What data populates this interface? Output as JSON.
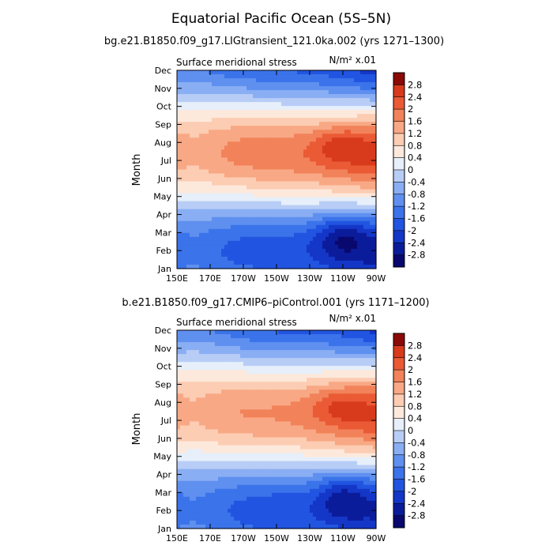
{
  "title": "Equatorial Pacific Ocean (5S–5N)",
  "months": [
    "Jan",
    "Feb",
    "Mar",
    "Apr",
    "May",
    "Jun",
    "Jul",
    "Aug",
    "Sep",
    "Oct",
    "Nov",
    "Dec"
  ],
  "lon_labels": [
    "150E",
    "170E",
    "170W",
    "150W",
    "130W",
    "110W",
    "90W"
  ],
  "colorbar": {
    "levels": [
      "-2.8",
      "-2.4",
      "-2",
      "-1.6",
      "-1.2",
      "-0.8",
      "-0.4",
      "0",
      "0.4",
      "0.8",
      "1.2",
      "1.6",
      "2",
      "2.4",
      "2.8"
    ],
    "colors": [
      "#08086e",
      "#0b1c9b",
      "#1437c8",
      "#2155e1",
      "#3b73ea",
      "#5f90f0",
      "#8aaef3",
      "#b8cdf6",
      "#e6effa",
      "#fde9dc",
      "#fcccb3",
      "#f8a884",
      "#f2825a",
      "#ea5a35",
      "#d83a1c",
      "#8a0a07"
    ]
  },
  "chart_data": [
    {
      "type": "contour",
      "subtitle": "bg.e21.B1850.f09_g17.LIGtransient_121.0ka.002 (yrs 1271–1300)",
      "left_label": "Surface meridional stress",
      "right_label": "N/m² x.01",
      "ylabel": "Month",
      "x_range": [
        150,
        270
      ],
      "y_range": [
        "Jan",
        "Dec"
      ],
      "variant": 0
    },
    {
      "type": "contour",
      "subtitle": "b.e21.B1850.f09_g17.CMIP6–piControl.001 (yrs 1171–1200)",
      "left_label": "Surface meridional stress",
      "right_label": "N/m² x.01",
      "ylabel": "Month",
      "x_range": [
        150,
        270
      ],
      "y_range": [
        "Jan",
        "Dec"
      ],
      "variant": 1
    }
  ]
}
